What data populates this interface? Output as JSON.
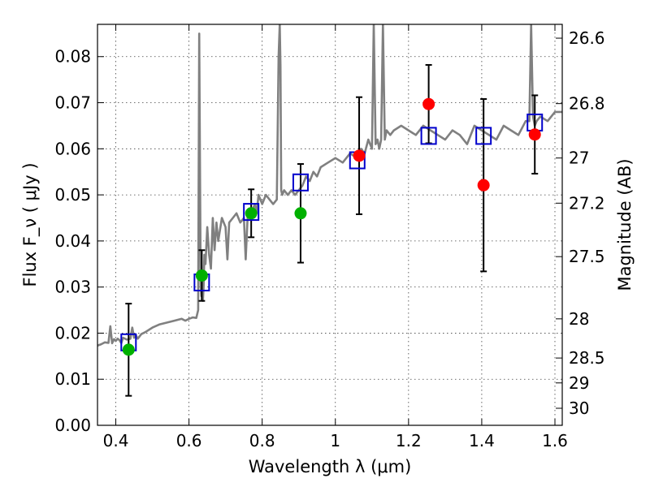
{
  "chart_data": {
    "type": "scatter",
    "title": "",
    "xlabel": "Wavelength  λ (μm)",
    "ylabel": "Flux  F_ν  ( μJy )",
    "y2label": "Magnitude (AB)",
    "xlim": [
      0.35,
      1.62
    ],
    "ylim": [
      0.0,
      0.087
    ],
    "grid": true,
    "x_ticks": [
      0.4,
      0.6,
      0.8,
      1.0,
      1.2,
      1.4,
      1.6
    ],
    "x_tick_labels": [
      "0.4",
      "0.6",
      "0.8",
      "1",
      "1.2",
      "1.4",
      "1.6"
    ],
    "y_ticks": [
      0.0,
      0.01,
      0.02,
      0.03,
      0.04,
      0.05,
      0.06,
      0.07,
      0.08
    ],
    "y_tick_labels": [
      "0.00",
      "0.01",
      "0.02",
      "0.03",
      "0.04",
      "0.05",
      "0.06",
      "0.07",
      "0.08"
    ],
    "mag_ticks": [
      {
        "label": "26.6",
        "flux": 0.084
      },
      {
        "label": "26.8",
        "flux": 0.0698
      },
      {
        "label": "27",
        "flux": 0.058
      },
      {
        "label": "27.2",
        "flux": 0.0482
      },
      {
        "label": "27.5",
        "flux": 0.0366
      },
      {
        "label": "28",
        "flux": 0.0231
      },
      {
        "label": "28.5",
        "flux": 0.0146
      },
      {
        "label": "29",
        "flux": 0.0092
      },
      {
        "label": "30",
        "flux": 0.0037
      }
    ],
    "series": [
      {
        "kind": "spectrum",
        "color": "#808080",
        "x": [
          0.35,
          0.36,
          0.37,
          0.38,
          0.385,
          0.39,
          0.395,
          0.4,
          0.405,
          0.41,
          0.415,
          0.42,
          0.43,
          0.44,
          0.445,
          0.45,
          0.455,
          0.46,
          0.47,
          0.48,
          0.5,
          0.52,
          0.54,
          0.56,
          0.58,
          0.59,
          0.6,
          0.61,
          0.62,
          0.625,
          0.628,
          0.632,
          0.634,
          0.636,
          0.638,
          0.64,
          0.642,
          0.645,
          0.65,
          0.655,
          0.66,
          0.665,
          0.67,
          0.675,
          0.68,
          0.69,
          0.7,
          0.705,
          0.71,
          0.72,
          0.73,
          0.74,
          0.75,
          0.755,
          0.76,
          0.765,
          0.77,
          0.78,
          0.785,
          0.79,
          0.8,
          0.81,
          0.82,
          0.83,
          0.84,
          0.845,
          0.848,
          0.85,
          0.852,
          0.855,
          0.86,
          0.87,
          0.88,
          0.89,
          0.9,
          0.91,
          0.92,
          0.93,
          0.94,
          0.95,
          0.96,
          0.98,
          1.0,
          1.02,
          1.04,
          1.06,
          1.07,
          1.08,
          1.09,
          1.1,
          1.105,
          1.11,
          1.115,
          1.12,
          1.125,
          1.13,
          1.135,
          1.14,
          1.15,
          1.16,
          1.18,
          1.2,
          1.22,
          1.24,
          1.26,
          1.28,
          1.3,
          1.32,
          1.34,
          1.36,
          1.38,
          1.4,
          1.42,
          1.44,
          1.46,
          1.48,
          1.5,
          1.52,
          1.53,
          1.535,
          1.54,
          1.545,
          1.55,
          1.56,
          1.58,
          1.6,
          1.62
        ],
        "values": [
          0.0173,
          0.0176,
          0.018,
          0.0179,
          0.0215,
          0.0178,
          0.0187,
          0.0183,
          0.0188,
          0.0185,
          0.0178,
          0.019,
          0.0186,
          0.0188,
          0.0212,
          0.019,
          0.0195,
          0.0188,
          0.0198,
          0.0202,
          0.0212,
          0.0219,
          0.0223,
          0.0227,
          0.0231,
          0.0227,
          0.0231,
          0.0234,
          0.0233,
          0.025,
          0.085,
          0.03,
          0.028,
          0.032,
          0.027,
          0.03,
          0.037,
          0.035,
          0.043,
          0.037,
          0.034,
          0.045,
          0.038,
          0.044,
          0.04,
          0.045,
          0.043,
          0.036,
          0.044,
          0.045,
          0.046,
          0.044,
          0.045,
          0.036,
          0.045,
          0.047,
          0.046,
          0.048,
          0.046,
          0.05,
          0.048,
          0.05,
          0.049,
          0.048,
          0.049,
          0.08,
          0.087,
          0.078,
          0.051,
          0.05,
          0.051,
          0.05,
          0.051,
          0.05,
          0.051,
          0.052,
          0.054,
          0.053,
          0.055,
          0.054,
          0.056,
          0.057,
          0.058,
          0.057,
          0.059,
          0.058,
          0.06,
          0.059,
          0.062,
          0.06,
          0.087,
          0.061,
          0.062,
          0.06,
          0.062,
          0.087,
          0.062,
          0.064,
          0.063,
          0.064,
          0.065,
          0.064,
          0.063,
          0.065,
          0.064,
          0.063,
          0.062,
          0.064,
          0.063,
          0.061,
          0.065,
          0.064,
          0.063,
          0.062,
          0.065,
          0.064,
          0.063,
          0.066,
          0.066,
          0.087,
          0.067,
          0.065,
          0.066,
          0.067,
          0.066,
          0.068,
          0.068
        ]
      },
      {
        "kind": "model",
        "marker": "open-square",
        "color": "#0000cc",
        "x": [
          0.435,
          0.635,
          0.77,
          0.905,
          1.06,
          1.255,
          1.405,
          1.545
        ],
        "values": [
          0.018,
          0.031,
          0.0463,
          0.0527,
          0.0575,
          0.0628,
          0.0628,
          0.0657
        ]
      },
      {
        "kind": "observed",
        "color": "#00b000",
        "x": [
          0.435,
          0.635,
          0.77,
          0.905
        ],
        "values": [
          0.0164,
          0.0325,
          0.046,
          0.046
        ],
        "errors": [
          0.01,
          0.0055,
          0.0052,
          0.0107
        ]
      },
      {
        "kind": "observed",
        "color": "#ff0000",
        "x": [
          1.065,
          1.255,
          1.405,
          1.545
        ],
        "values": [
          0.0585,
          0.0697,
          0.0521,
          0.0631
        ],
        "errors": [
          0.0127,
          0.0085,
          0.0187,
          0.0085
        ]
      }
    ]
  }
}
